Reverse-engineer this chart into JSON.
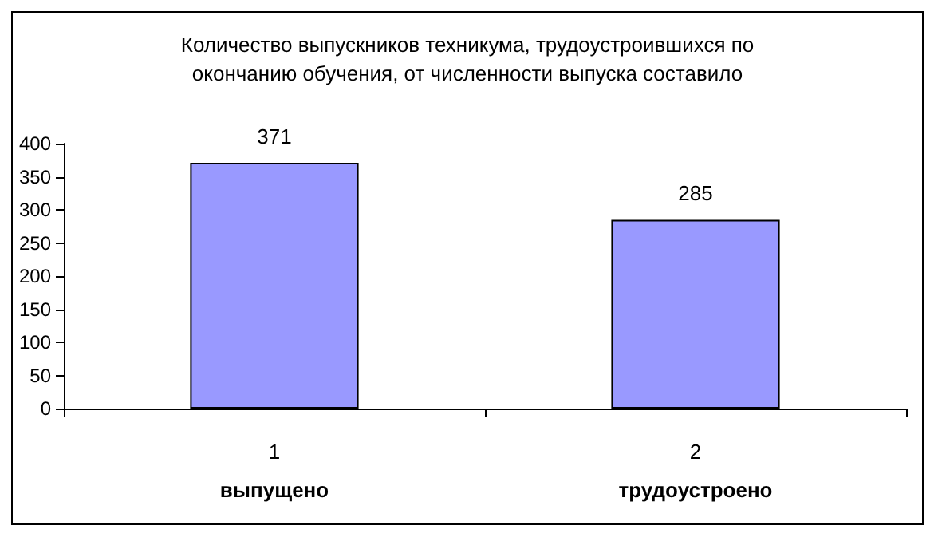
{
  "chart_data": {
    "type": "bar",
    "title": "Количество выпускников техникума, трудоустроившихся по\nокончанию обучения, от численности выпуска составило",
    "categories": [
      "1\nвыпущено",
      "2\nтрудоустроено"
    ],
    "values": [
      371,
      285
    ],
    "color": "#9999ff",
    "ylim": [
      0,
      400
    ],
    "yticks": [
      0,
      50,
      100,
      150,
      200,
      250,
      300,
      350,
      400
    ],
    "grid": false,
    "data_labels": true
  }
}
